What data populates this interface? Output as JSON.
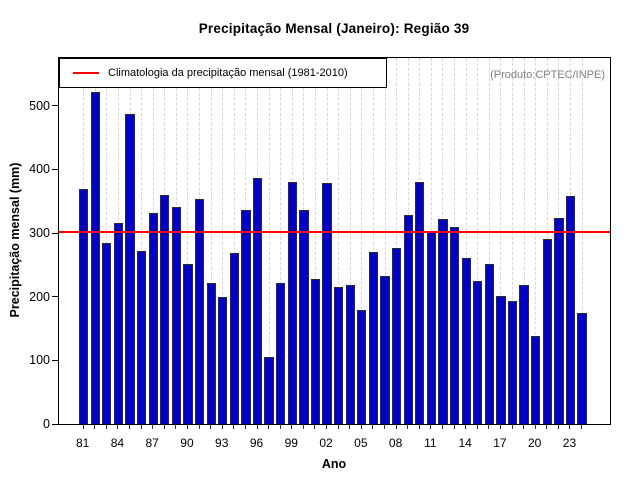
{
  "title": "Precipitação Mensal (Janeiro): Região 39",
  "annotation": "(Produto:CPTEC/INPE)",
  "legend": {
    "label": "Climatologia da precipitação mensal (1981-2010)",
    "line_color": "#ff0000"
  },
  "chart_data": {
    "type": "bar",
    "title": "Precipitação Mensal (Janeiro): Região 39",
    "xlabel": "Ano",
    "ylabel": "Precipitação mensal (mm)",
    "ylim": [
      0,
      575
    ],
    "yticks": [
      0,
      100,
      200,
      300,
      400,
      500
    ],
    "grid": "vertical-dashed",
    "grid_color": "#d6d6d6",
    "legend_position": "top-left",
    "bar_color": "#0000CD",
    "climatology_value": 302,
    "climatology_color": "#ff0000",
    "years": [
      1981,
      1982,
      1983,
      1984,
      1985,
      1986,
      1987,
      1988,
      1989,
      1990,
      1991,
      1992,
      1993,
      1994,
      1995,
      1996,
      1997,
      1998,
      1999,
      2000,
      2001,
      2002,
      2003,
      2004,
      2005,
      2006,
      2007,
      2008,
      2009,
      2010,
      2011,
      2012,
      2013,
      2014,
      2015,
      2016,
      2017,
      2018,
      2019,
      2020,
      2021,
      2022,
      2023,
      2024
    ],
    "values": [
      370,
      522,
      284,
      316,
      487,
      272,
      332,
      360,
      341,
      251,
      353,
      222,
      199,
      268,
      337,
      387,
      106,
      222,
      381,
      336,
      228,
      379,
      215,
      218,
      179,
      271,
      232,
      276,
      328,
      381,
      304,
      322,
      310,
      261,
      225,
      251,
      201,
      193,
      218,
      139,
      290,
      324,
      358,
      175
    ],
    "xtick_label_indices": [
      0,
      3,
      6,
      9,
      12,
      15,
      18,
      21,
      24,
      27,
      30,
      33,
      36,
      39,
      42
    ],
    "xtick_labels": [
      "81",
      "84",
      "87",
      "90",
      "93",
      "96",
      "99",
      "02",
      "05",
      "08",
      "11",
      "14",
      "17",
      "20",
      "23"
    ]
  }
}
